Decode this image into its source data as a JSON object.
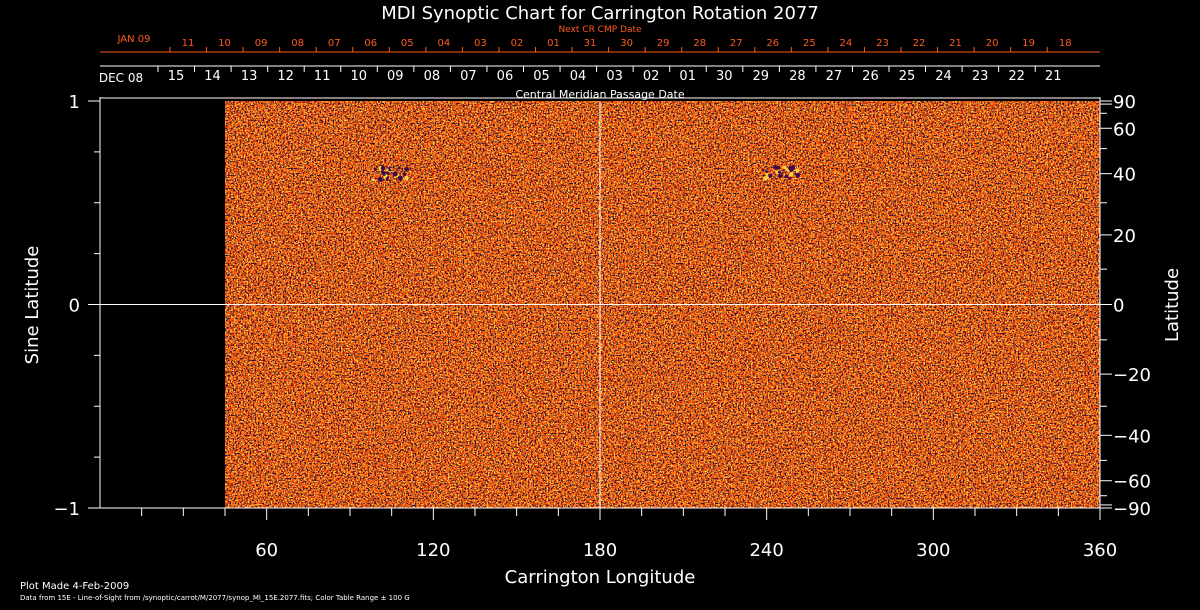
{
  "chart_data": {
    "type": "heatmap",
    "title": "MDI Synoptic Chart for Carrington Rotation 2077",
    "xlabel": "Carrington Longitude",
    "ylabel_left": "Sine Latitude",
    "ylabel_right": "Latitude",
    "xlim": [
      0,
      360
    ],
    "ylim": [
      -1,
      1
    ],
    "x_ticks": [
      60,
      120,
      180,
      240,
      300,
      360
    ],
    "y_left_ticks": [
      {
        "value": 1,
        "label": "1"
      },
      {
        "value": 0,
        "label": "0"
      },
      {
        "value": -1,
        "label": "−1"
      }
    ],
    "y_right_ticks": [
      90,
      60,
      40,
      20,
      0,
      -20,
      -40,
      -60,
      -90
    ],
    "data_start_longitude": 45,
    "colormap": [
      "#120008",
      "#3a0a4a",
      "#c81400",
      "#ff4a00",
      "#ff7a00",
      "#ffd23c",
      "#ffffb4"
    ],
    "color_table_range_gauss": 100,
    "top_axis_label": "Central Meridian Passage Date",
    "top_axis_month_label": "DEC 08",
    "top_axis_dates": [
      "15",
      "14",
      "13",
      "12",
      "11",
      "10",
      "09",
      "08",
      "07",
      "06",
      "05",
      "04",
      "03",
      "02",
      "01",
      "30",
      "29",
      "28",
      "27",
      "26",
      "25",
      "24",
      "23",
      "22",
      "21"
    ],
    "next_cr_label": "Next CR CMP Date",
    "next_cr_month_label": "JAN 09",
    "next_cr_dates": [
      "11",
      "10",
      "09",
      "08",
      "07",
      "06",
      "05",
      "04",
      "03",
      "02",
      "01",
      "31",
      "30",
      "29",
      "28",
      "27",
      "26",
      "25",
      "24",
      "23",
      "22",
      "21",
      "20",
      "19",
      "18"
    ],
    "active_regions": [
      {
        "longitude": 105,
        "latitude": 40
      },
      {
        "longitude": 245,
        "latitude": 40
      }
    ],
    "grid": "center lines only"
  },
  "footer": {
    "plot_made": "Plot Made  4-Feb-2009",
    "source_line": "Data from 15E - Line-of-Sight from /synoptic/carrot/M/2077/synop_Ml_15E.2077.fits; Color Table Range ± 100 G"
  }
}
